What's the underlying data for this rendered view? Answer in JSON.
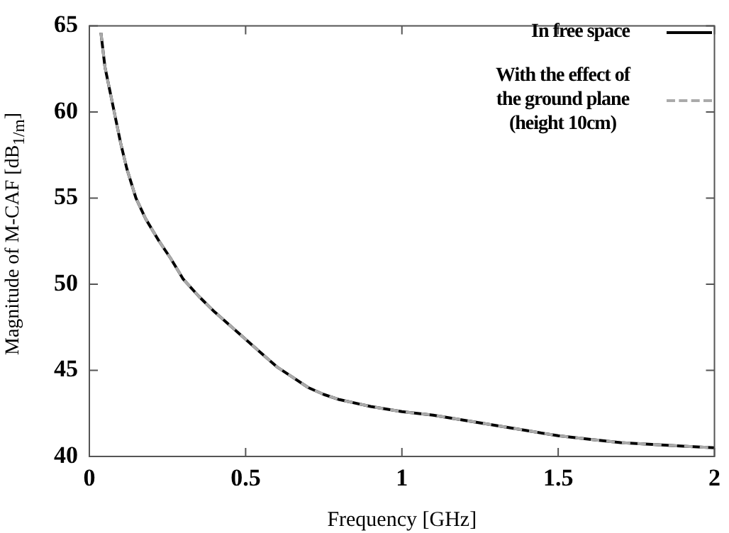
{
  "chart_data": {
    "type": "line",
    "xlabel": "Frequency [GHz]",
    "ylabel": "Magnitude of M-CAF [dB$_{1/m}$]",
    "xlim": [
      0,
      2
    ],
    "xticks": [
      0,
      0.5,
      1,
      1.5,
      2
    ],
    "ylim": [
      40,
      65
    ],
    "yticks": [
      40,
      45,
      50,
      55,
      60,
      65
    ],
    "legend": "top right",
    "marker": "none",
    "series": [
      {
        "name": "In free space",
        "color": "#000000",
        "line_style": "solid",
        "x": [
          0.037,
          0.05,
          0.075,
          0.1,
          0.12,
          0.149,
          0.18,
          0.223,
          0.26,
          0.3,
          0.35,
          0.4,
          0.45,
          0.5,
          0.55,
          0.6,
          0.65,
          0.7,
          0.75,
          0.8,
          0.9,
          1.0,
          1.1,
          1.2,
          1.3,
          1.4,
          1.5,
          1.6,
          1.7,
          1.8,
          1.9,
          2.0
        ],
        "values": [
          64.6,
          62.6,
          60.4,
          58.2,
          56.7,
          55.0,
          53.8,
          52.5,
          51.5,
          50.3,
          49.3,
          48.4,
          47.6,
          46.8,
          46.0,
          45.2,
          44.6,
          44.0,
          43.6,
          43.3,
          42.9,
          42.6,
          42.4,
          42.1,
          41.8,
          41.5,
          41.2,
          41.0,
          40.8,
          40.7,
          40.6,
          40.5
        ]
      },
      {
        "name": "With the effect of\nthe ground plane\n(height 10cm)",
        "color": "#aaaaaa",
        "line_style": "dashed",
        "x": [
          0.037,
          0.05,
          0.075,
          0.1,
          0.12,
          0.149,
          0.18,
          0.223,
          0.26,
          0.3,
          0.35,
          0.4,
          0.45,
          0.5,
          0.55,
          0.6,
          0.65,
          0.7,
          0.75,
          0.8,
          0.9,
          1.0,
          1.1,
          1.2,
          1.3,
          1.4,
          1.5,
          1.6,
          1.7,
          1.8,
          1.9,
          2.0
        ],
        "values": [
          64.6,
          62.6,
          60.4,
          58.2,
          56.7,
          55.0,
          53.8,
          52.5,
          51.5,
          50.3,
          49.3,
          48.4,
          47.6,
          46.8,
          46.0,
          45.2,
          44.6,
          44.0,
          43.6,
          43.3,
          42.9,
          42.6,
          42.4,
          42.1,
          41.8,
          41.5,
          41.2,
          41.0,
          40.8,
          40.7,
          40.6,
          40.5
        ]
      }
    ]
  }
}
